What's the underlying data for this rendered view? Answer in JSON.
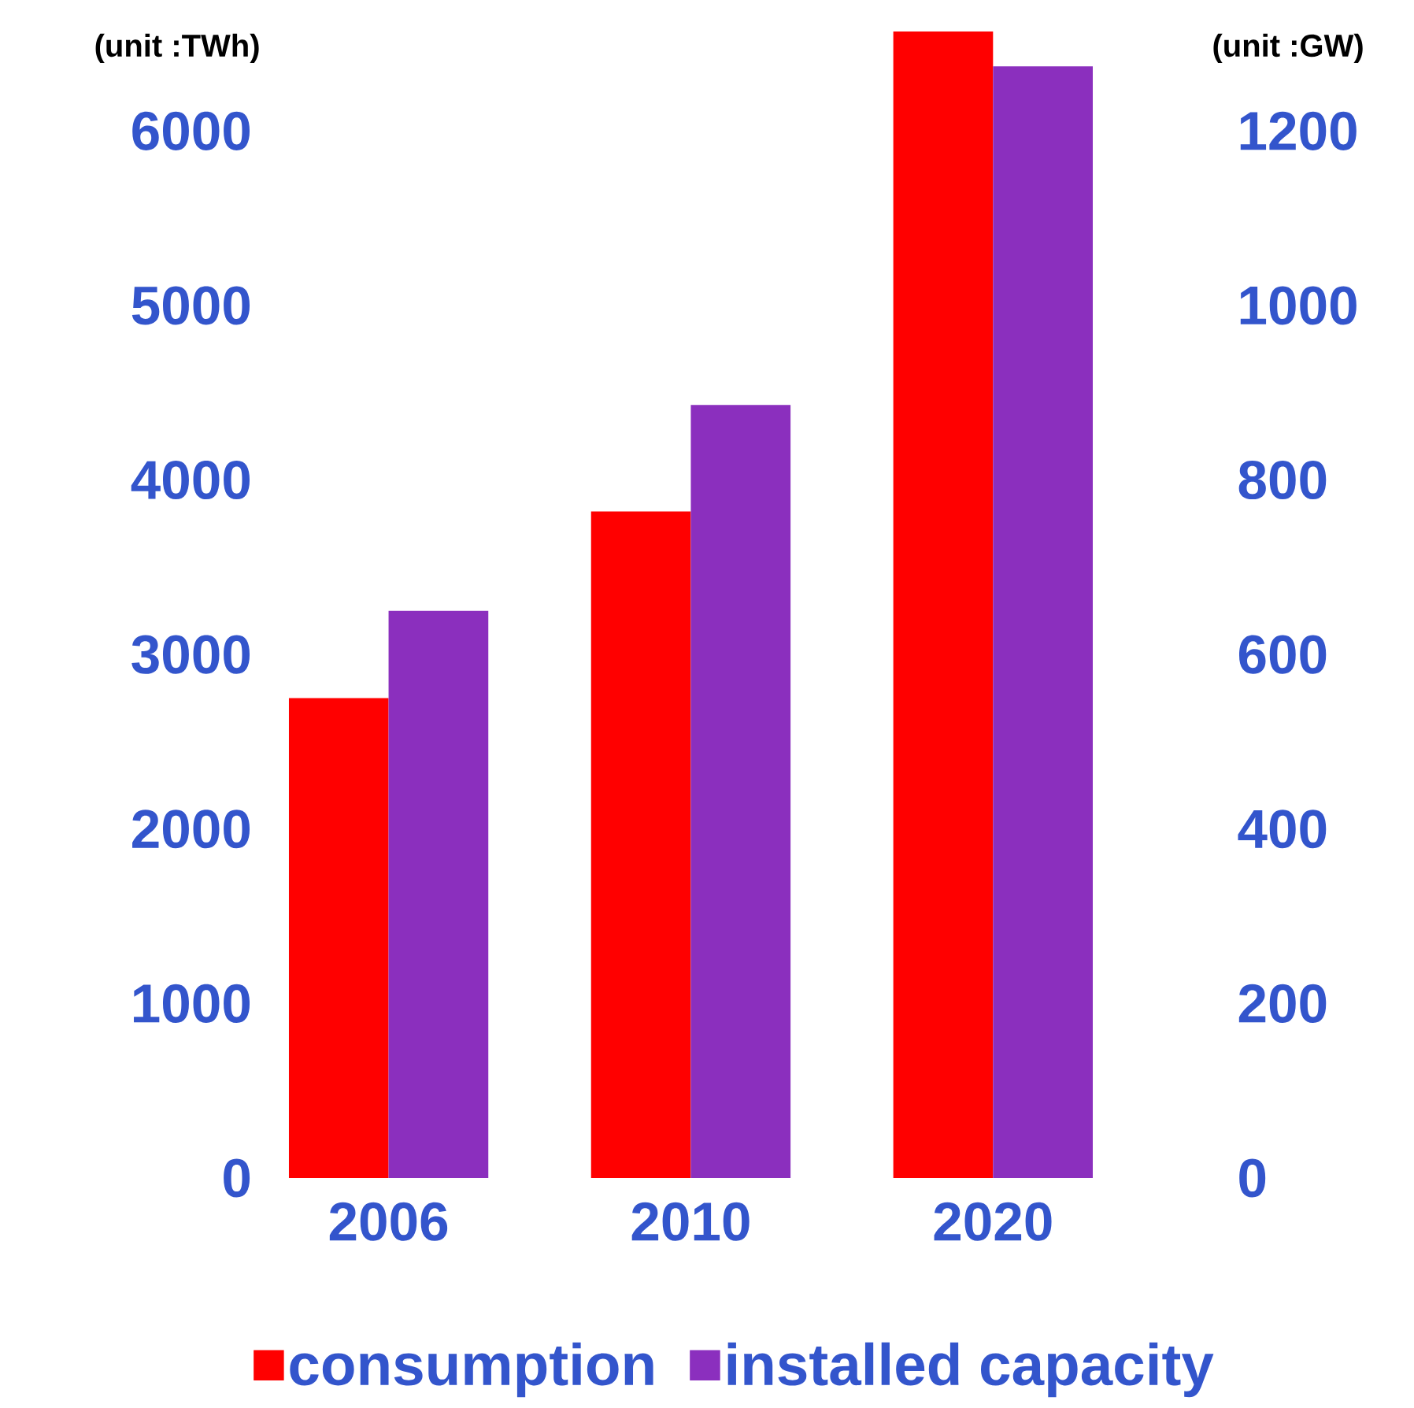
{
  "chart_data": {
    "type": "bar",
    "categories": [
      "2006",
      "2010",
      "2020"
    ],
    "series": [
      {
        "name": "consumption",
        "color": "#ff0000",
        "values": [
          2750,
          3820,
          6570
        ]
      },
      {
        "name": "installed capacity",
        "color": "#8b2fbe",
        "values": [
          650,
          886,
          1274
        ],
        "axis": "y2"
      }
    ],
    "ylabel": "(unit :TWh)",
    "y2label": "(unit :GW)",
    "ylim": [
      0,
      6600
    ],
    "yticks": [
      0,
      1000,
      2000,
      3000,
      4000,
      5000,
      6000
    ],
    "y2lim": [
      0,
      1320
    ],
    "y2ticks": [
      0,
      200,
      400,
      600,
      800,
      1000,
      1200
    ],
    "legend": "bottom"
  }
}
